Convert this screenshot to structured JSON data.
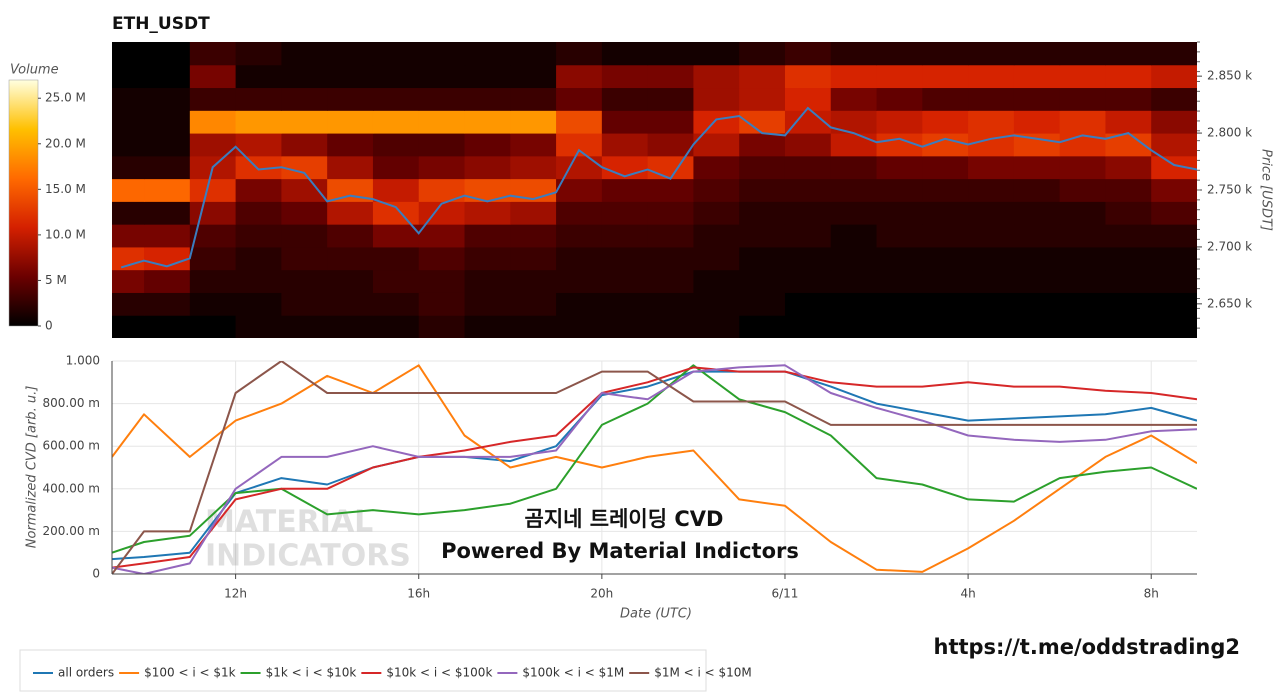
{
  "chart_data": [
    {
      "type": "heatmap",
      "title": "ETH_USDT",
      "x_bins": [
        9.3,
        10,
        11,
        12,
        13,
        14,
        15,
        16,
        17,
        18,
        19,
        20,
        21,
        22,
        23,
        24,
        25,
        26,
        27,
        28,
        29,
        30,
        31,
        32,
        33
      ],
      "y_bins": [
        2620,
        2640,
        2660,
        2680,
        2700,
        2720,
        2740,
        2760,
        2780,
        2800,
        2820,
        2840,
        2860,
        2880
      ],
      "z": [
        [
          0,
          0,
          0,
          1,
          1,
          1,
          1,
          2,
          1,
          1,
          1,
          1,
          1,
          1,
          0,
          0,
          0,
          0,
          0,
          0,
          0,
          0,
          0,
          0
        ],
        [
          2,
          2,
          1,
          1,
          2,
          2,
          2,
          3,
          2,
          2,
          1,
          1,
          1,
          1,
          1,
          0,
          0,
          0,
          0,
          0,
          0,
          0,
          0,
          0
        ],
        [
          6,
          5,
          2,
          2,
          2,
          2,
          3,
          3,
          2,
          2,
          2,
          2,
          2,
          1,
          1,
          1,
          1,
          1,
          1,
          1,
          1,
          1,
          1,
          1
        ],
        [
          12,
          11,
          3,
          2,
          3,
          3,
          3,
          4,
          3,
          3,
          2,
          2,
          2,
          2,
          1,
          1,
          1,
          1,
          1,
          1,
          1,
          1,
          1,
          1
        ],
        [
          6,
          6,
          4,
          3,
          3,
          4,
          6,
          6,
          4,
          4,
          3,
          3,
          3,
          2,
          2,
          2,
          1,
          2,
          2,
          2,
          2,
          2,
          2,
          2
        ],
        [
          2,
          2,
          7,
          4,
          5,
          9,
          12,
          10,
          9,
          8,
          4,
          4,
          4,
          3,
          2,
          2,
          2,
          2,
          2,
          2,
          2,
          2,
          3,
          4
        ],
        [
          16,
          16,
          12,
          6,
          8,
          14,
          10,
          13,
          14,
          14,
          6,
          5,
          5,
          4,
          3,
          3,
          3,
          3,
          3,
          3,
          3,
          4,
          4,
          6
        ],
        [
          2,
          2,
          9,
          12,
          13,
          8,
          5,
          6,
          7,
          8,
          9,
          11,
          12,
          5,
          4,
          4,
          4,
          5,
          5,
          6,
          6,
          6,
          7,
          11
        ],
        [
          1,
          1,
          8,
          9,
          7,
          5,
          4,
          4,
          5,
          6,
          12,
          8,
          7,
          9,
          6,
          7,
          10,
          12,
          13,
          12,
          13,
          12,
          13,
          9
        ],
        [
          1,
          1,
          18,
          19,
          19,
          19,
          19,
          19,
          19,
          19,
          14,
          5,
          5,
          11,
          13,
          10,
          9,
          10,
          11,
          12,
          11,
          12,
          10,
          7
        ],
        [
          1,
          1,
          3,
          3,
          3,
          3,
          3,
          3,
          3,
          3,
          5,
          3,
          3,
          8,
          9,
          11,
          6,
          5,
          4,
          4,
          4,
          4,
          4,
          3
        ],
        [
          0,
          0,
          6,
          1,
          1,
          1,
          1,
          1,
          1,
          1,
          7,
          6,
          6,
          8,
          9,
          12,
          11,
          11,
          11,
          11,
          11,
          11,
          11,
          10
        ],
        [
          0,
          0,
          3,
          2,
          1,
          1,
          1,
          1,
          1,
          1,
          2,
          1,
          1,
          1,
          2,
          3,
          2,
          2,
          2,
          2,
          2,
          2,
          2,
          2
        ]
      ],
      "zlim": [
        0,
        27
      ],
      "colorscale": [
        [
          0,
          "#000000"
        ],
        [
          0.2,
          "#6b0000"
        ],
        [
          0.4,
          "#d42000"
        ],
        [
          0.6,
          "#ff6a00"
        ],
        [
          0.8,
          "#ffc000"
        ],
        [
          1,
          "#ffffe0"
        ]
      ],
      "colorbar_title": "Volume",
      "colorbar_ticks": [
        0,
        {
          "value": 5,
          "label": "5 M"
        },
        {
          "value": 10,
          "label": "10.0 M"
        },
        {
          "value": 15,
          "label": "15.0 M"
        },
        {
          "value": 20,
          "label": "20.0 M"
        },
        {
          "value": 25,
          "label": "25.0 M"
        }
      ],
      "xlim": [
        9.3,
        33
      ],
      "ylim": [
        2620,
        2880
      ],
      "yticks": [
        {
          "value": 2650,
          "label": "2.650 k"
        },
        {
          "value": 2700,
          "label": "2.700 k"
        },
        {
          "value": 2750,
          "label": "2.750 k"
        },
        {
          "value": 2800,
          "label": "2.800 k"
        },
        {
          "value": 2850,
          "label": "2.850 k"
        }
      ],
      "y_label": "Price [USDT]",
      "line": {
        "color": "#3a7dbf",
        "x": [
          9.5,
          10,
          10.5,
          11,
          11.5,
          12,
          12.5,
          13,
          13.5,
          14,
          14.5,
          15,
          15.5,
          16,
          16.5,
          17,
          17.5,
          18,
          18.5,
          19,
          19.5,
          20,
          20.5,
          21,
          21.5,
          22,
          22.5,
          23,
          23.5,
          24,
          24.5,
          25,
          25.5,
          26,
          26.5,
          27,
          27.5,
          28,
          28.5,
          29,
          29.5,
          30,
          30.5,
          31,
          31.5,
          32,
          32.5,
          33
        ],
        "values": [
          2682,
          2688,
          2683,
          2690,
          2770,
          2788,
          2768,
          2770,
          2765,
          2740,
          2745,
          2742,
          2735,
          2712,
          2738,
          2745,
          2740,
          2745,
          2742,
          2748,
          2785,
          2770,
          2762,
          2768,
          2760,
          2790,
          2812,
          2815,
          2800,
          2798,
          2822,
          2805,
          2800,
          2792,
          2795,
          2788,
          2795,
          2790,
          2795,
          2798,
          2795,
          2792,
          2798,
          2795,
          2800,
          2785,
          2772,
          2768
        ]
      }
    },
    {
      "type": "line",
      "x": [
        9.3,
        10,
        11,
        12,
        13,
        14,
        15,
        16,
        17,
        18,
        19,
        20,
        21,
        22,
        23,
        24,
        25,
        26,
        27,
        28,
        29,
        30,
        31,
        32,
        33
      ],
      "series": [
        {
          "name": "all orders",
          "color": "#1f77b4",
          "values": [
            0.07,
            0.08,
            0.1,
            0.38,
            0.45,
            0.42,
            0.5,
            0.55,
            0.55,
            0.53,
            0.6,
            0.84,
            0.88,
            0.95,
            0.95,
            0.95,
            0.88,
            0.8,
            0.76,
            0.72,
            0.73,
            0.74,
            0.75,
            0.78,
            0.72
          ]
        },
        {
          "name": "$100 < i < $1k",
          "color": "#ff7f0e",
          "values": [
            0.55,
            0.75,
            0.55,
            0.72,
            0.8,
            0.93,
            0.85,
            0.98,
            0.65,
            0.5,
            0.55,
            0.5,
            0.55,
            0.58,
            0.35,
            0.32,
            0.15,
            0.02,
            0.01,
            0.12,
            0.25,
            0.4,
            0.55,
            0.65,
            0.52
          ]
        },
        {
          "name": "$1k < i < $10k",
          "color": "#2ca02c",
          "values": [
            0.1,
            0.15,
            0.18,
            0.38,
            0.4,
            0.28,
            0.3,
            0.28,
            0.3,
            0.33,
            0.4,
            0.7,
            0.8,
            0.98,
            0.82,
            0.76,
            0.65,
            0.45,
            0.42,
            0.35,
            0.34,
            0.45,
            0.48,
            0.5,
            0.4
          ]
        },
        {
          "name": "$10k < i < $100k",
          "color": "#d62728",
          "values": [
            0.03,
            0.05,
            0.08,
            0.35,
            0.4,
            0.4,
            0.5,
            0.55,
            0.58,
            0.62,
            0.65,
            0.85,
            0.9,
            0.97,
            0.95,
            0.95,
            0.9,
            0.88,
            0.88,
            0.9,
            0.88,
            0.88,
            0.86,
            0.85,
            0.82
          ]
        },
        {
          "name": "$100k < i < $1M",
          "color": "#9467bd",
          "values": [
            0.03,
            0.0,
            0.05,
            0.4,
            0.55,
            0.55,
            0.6,
            0.55,
            0.55,
            0.55,
            0.58,
            0.85,
            0.82,
            0.95,
            0.97,
            0.98,
            0.85,
            0.78,
            0.72,
            0.65,
            0.63,
            0.62,
            0.63,
            0.67,
            0.68
          ]
        },
        {
          "name": "$1M < i < $10M",
          "color": "#8c564b",
          "values": [
            0.0,
            0.2,
            0.2,
            0.85,
            1.0,
            0.85,
            0.85,
            0.85,
            0.85,
            0.85,
            0.85,
            0.95,
            0.95,
            0.81,
            0.81,
            0.81,
            0.7,
            0.7,
            0.7,
            0.7,
            0.7,
            0.7,
            0.7,
            0.7,
            0.7
          ]
        }
      ],
      "xlim": [
        9.3,
        33
      ],
      "xticks": [
        {
          "value": 12,
          "label": "12h"
        },
        {
          "value": 16,
          "label": "16h"
        },
        {
          "value": 20,
          "label": "20h"
        },
        {
          "value": 24,
          "label": "6/11"
        },
        {
          "value": 28,
          "label": "4h"
        },
        {
          "value": 32,
          "label": "8h"
        }
      ],
      "ylim": [
        0,
        1
      ],
      "yticks": [
        0,
        {
          "value": 0.2,
          "label": "200.00 m"
        },
        {
          "value": 0.4,
          "label": "400.00 m"
        },
        {
          "value": 0.6,
          "label": "600.00 m"
        },
        {
          "value": 0.8,
          "label": "800.00 m"
        },
        {
          "value": 1,
          "label": "1.000"
        }
      ],
      "x_label": "Date (UTC)",
      "y_label": "Normalized CVD [arb. u.]",
      "grid": true,
      "legend": "bottom-left"
    }
  ],
  "watermark": [
    "MATERIAL",
    "INDICATORS"
  ],
  "overlay": {
    "title": "곰지네 트레이딩 CVD",
    "subtitle": "Powered By Material Indictors"
  },
  "link": "https://t.me/oddstrading2"
}
